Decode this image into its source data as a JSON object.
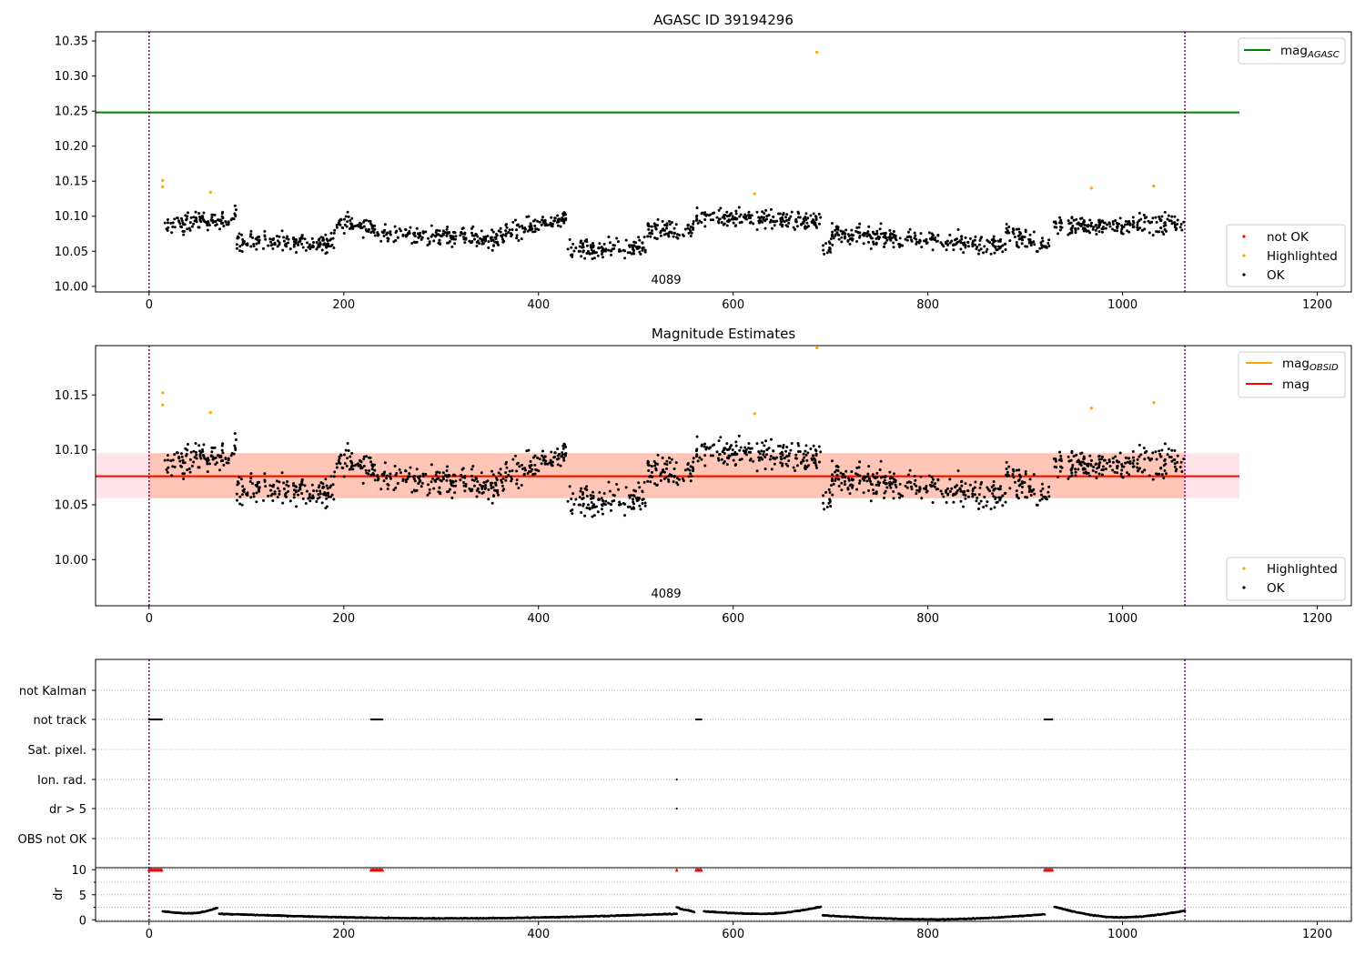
{
  "figure": {
    "colors": {
      "ok": "#000000",
      "highlighted": "#ffa500",
      "not_ok": "#ff0000",
      "agasc_line": "#008000",
      "obsid_line": "#ffa500",
      "mag_line": "#ff0000",
      "obs_boundary": "#800080",
      "mag_band": "#ffc0cb",
      "obsid_band": "#ffa07a"
    }
  },
  "chart_data": [
    {
      "type": "scatter",
      "title": "AGASC ID 39194296",
      "xlim": [
        -55,
        1235
      ],
      "ylim": [
        9.992,
        10.363
      ],
      "x_ticks": [
        "0",
        "200",
        "400",
        "600",
        "800",
        "1000",
        "1200"
      ],
      "y_ticks": [
        "10.00",
        "10.05",
        "10.10",
        "10.15",
        "10.20",
        "10.25",
        "10.30",
        "10.35"
      ],
      "grid": false,
      "annotation": "4089",
      "obs_boundaries_x": [
        0,
        1064
      ],
      "legend_top": {
        "placement": "upper-right",
        "entries": [
          {
            "label": "mag",
            "sub": "AGASC"
          }
        ]
      },
      "legend_bottom": {
        "placement": "lower-right",
        "entries": [
          "not OK",
          "Highlighted",
          "OK"
        ]
      },
      "mag_agasc": 10.248,
      "mag_agasc_x_range": [
        -55,
        1120
      ],
      "highlighted_points": [
        [
          14,
          10.151
        ],
        [
          14,
          10.142
        ],
        [
          63,
          10.134
        ],
        [
          622,
          10.132
        ],
        [
          686,
          10.334
        ],
        [
          968,
          10.14
        ],
        [
          1032,
          10.143
        ]
      ],
      "ok_segments": [
        {
          "x": [
            16,
            90
          ],
          "level": [
            10.085,
            10.1
          ]
        },
        {
          "x": [
            90,
            190
          ],
          "level": [
            10.065,
            10.062
          ]
        },
        {
          "x": [
            190,
            230
          ],
          "level": [
            10.09,
            10.085
          ]
        },
        {
          "x": [
            230,
            360
          ],
          "level": [
            10.075,
            10.068
          ]
        },
        {
          "x": [
            360,
            430
          ],
          "level": [
            10.072,
            10.098
          ]
        },
        {
          "x": [
            430,
            510
          ],
          "level": [
            10.05,
            10.058
          ]
        },
        {
          "x": [
            510,
            560
          ],
          "level": [
            10.08,
            10.082
          ]
        },
        {
          "x": [
            562,
            690
          ],
          "level": [
            10.1,
            10.093
          ]
        },
        {
          "x": [
            692,
            700
          ],
          "level": [
            10.055,
            10.055
          ]
        },
        {
          "x": [
            700,
            880
          ],
          "level": [
            10.075,
            10.058
          ]
        },
        {
          "x": [
            880,
            925
          ],
          "level": [
            10.08,
            10.055
          ]
        },
        {
          "x": [
            928,
            1064
          ],
          "level": [
            10.085,
            10.09
          ]
        }
      ]
    },
    {
      "type": "scatter",
      "title": "Magnitude Estimates",
      "xlim": [
        -55,
        1235
      ],
      "ylim": [
        9.958,
        10.195
      ],
      "x_ticks": [
        "0",
        "200",
        "400",
        "600",
        "800",
        "1000",
        "1200"
      ],
      "y_ticks": [
        "10.00",
        "10.05",
        "10.10",
        "10.15"
      ],
      "grid": false,
      "annotation": "4089",
      "obs_boundaries_x": [
        0,
        1064
      ],
      "legend_top": {
        "placement": "upper-right",
        "entries": [
          {
            "label": "mag",
            "sub": "OBSID"
          },
          {
            "label": "mag",
            "sub": ""
          }
        ]
      },
      "legend_bottom": {
        "placement": "lower-right",
        "entries": [
          "Highlighted",
          "OK"
        ]
      },
      "mag": 10.076,
      "mag_band": [
        10.056,
        10.097
      ],
      "mag_obsid": 10.076,
      "mag_obsid_band": [
        10.056,
        10.097
      ],
      "highlighted_points": [
        [
          14,
          10.152
        ],
        [
          14,
          10.141
        ],
        [
          63,
          10.134
        ],
        [
          622,
          10.133
        ],
        [
          686,
          10.193
        ],
        [
          968,
          10.138
        ],
        [
          1032,
          10.143
        ]
      ]
    },
    {
      "type": "scatter",
      "xlim": [
        -55,
        1235
      ],
      "category_labels": [
        "not Kalman",
        "not track",
        "Sat. pixel.",
        "Ion. rad.",
        "dr > 5",
        "OBS not OK"
      ],
      "flags": {
        "not track": [
          [
            0,
            13
          ],
          [
            228,
            240
          ],
          [
            562,
            568
          ],
          [
            920,
            928
          ]
        ],
        "Ion. rad.": [
          [
            542,
            542
          ]
        ],
        "dr > 5": [
          [
            542,
            542
          ]
        ]
      },
      "obs_boundaries_x": [
        0,
        1064
      ]
    },
    {
      "type": "scatter",
      "ylabel": "dr",
      "xlim": [
        -55,
        1235
      ],
      "ylim": [
        -0.3,
        10.4
      ],
      "y_ticks": [
        "0",
        "5",
        "10"
      ],
      "x_ticks": [
        "0",
        "200",
        "400",
        "600",
        "800",
        "1000",
        "1200"
      ],
      "grid": true,
      "capped_value": 10,
      "capped_x_ranges": [
        [
          0,
          13
        ],
        [
          228,
          240
        ],
        [
          542,
          542
        ],
        [
          562,
          568
        ],
        [
          920,
          928
        ]
      ],
      "dr_segments": [
        {
          "x": [
            14,
            70
          ],
          "profile": [
            1.7,
            1.3,
            2.4
          ]
        },
        {
          "x": [
            72,
            542
          ],
          "profile": [
            1.2,
            0.3,
            1.2
          ]
        },
        {
          "x": [
            542,
            560
          ],
          "profile": [
            2.6,
            2.0,
            1.5
          ]
        },
        {
          "x": [
            570,
            690
          ],
          "profile": [
            1.7,
            1.2,
            2.6
          ]
        },
        {
          "x": [
            692,
            920
          ],
          "profile": [
            0.9,
            0.1,
            1.1
          ]
        },
        {
          "x": [
            930,
            1064
          ],
          "profile": [
            2.6,
            0.5,
            1.8
          ]
        }
      ],
      "obs_boundaries_x": [
        0,
        1064
      ]
    }
  ]
}
